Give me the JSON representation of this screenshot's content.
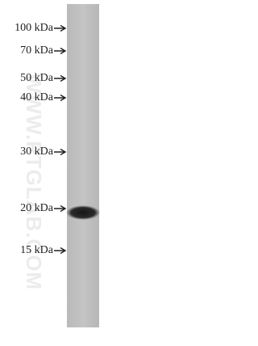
{
  "markers": [
    {
      "label": "100 kDa"
    },
    {
      "label": "70 kDa"
    },
    {
      "label": "50 kDa"
    },
    {
      "label": "40 kDa"
    },
    {
      "label": "30 kDa"
    },
    {
      "label": "20 kDa"
    },
    {
      "label": "15 kDa"
    }
  ],
  "watermark": "WWW.PTGLAB.COM"
}
